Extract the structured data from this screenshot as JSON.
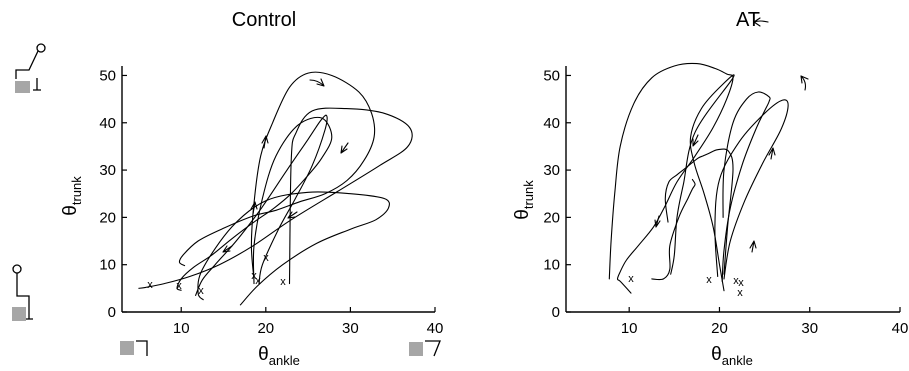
{
  "chart_data": [
    {
      "type": "line",
      "title": "Control",
      "xlabel": "θ",
      "xlabel_sub": "ankle",
      "ylabel": "θ",
      "ylabel_sub": "trunk",
      "xlim": [
        3,
        40
      ],
      "ylim": [
        0,
        52
      ],
      "xticks": [
        10,
        20,
        30,
        40
      ],
      "yticks": [
        0,
        10,
        20,
        30,
        40,
        50
      ],
      "grid": false,
      "series": [
        {
          "x": [
            18.6,
            18.3,
            18.6,
            19.4,
            20.8,
            22.8,
            25.0,
            27.8,
            31.0,
            32.5,
            32.8,
            31.6,
            29.6,
            27.0,
            24.0,
            21.2,
            18.5,
            15.0,
            12.0,
            10.2,
            9.8,
            10.4
          ],
          "y": [
            7.0,
            14.0,
            23.0,
            33.0,
            40.0,
            47.5,
            50.5,
            50.0,
            46.5,
            42.0,
            37.0,
            32.0,
            27.8,
            25.0,
            23.3,
            21.5,
            20.3,
            17.7,
            15.0,
            12.0,
            10.5,
            9.8
          ]
        },
        {
          "x": [
            18.6,
            18.6,
            19.6,
            21.2,
            23.8,
            26.6,
            27.8,
            26.6,
            24.8,
            23.0,
            21.0,
            18.6,
            16.0,
            13.6,
            11.5,
            10.0,
            9.5,
            10.0
          ],
          "y": [
            6.0,
            14.0,
            24.0,
            33.0,
            39.5,
            41.0,
            37.0,
            32.5,
            28.5,
            25.0,
            22.0,
            19.0,
            15.5,
            12.0,
            9.5,
            7.0,
            5.0,
            4.6
          ]
        },
        {
          "x": [
            5.0,
            5.8,
            8.0,
            11.0,
            14.5,
            18.5,
            23.0,
            28.5,
            33.5,
            36.8,
            37.0,
            34.0,
            29.5,
            25.5,
            23.6,
            23.0,
            22.8
          ],
          "y": [
            5.0,
            5.2,
            6.0,
            7.5,
            10.0,
            14.0,
            19.5,
            25.5,
            31.0,
            35.0,
            39.0,
            42.0,
            43.0,
            42.5,
            38.0,
            32.0,
            6.0
          ]
        },
        {
          "x": [
            11.7,
            12.5,
            14.0,
            16.5,
            19.5,
            22.5,
            25.0,
            26.5,
            27.2,
            27.0,
            25.5,
            23.5,
            21.5,
            19.6,
            19.2
          ],
          "y": [
            3.5,
            6.8,
            10.0,
            15.0,
            22.0,
            30.0,
            36.5,
            40.5,
            41.5,
            38.5,
            31.0,
            24.0,
            17.5,
            10.0,
            6.0
          ]
        },
        {
          "x": [
            17.0,
            19.0,
            22.0,
            26.0,
            30.0,
            33.0,
            34.5,
            34.0,
            30.0,
            25.0,
            20.0,
            16.0,
            12.5,
            12.0,
            12.6
          ],
          "y": [
            1.5,
            5.5,
            10.0,
            14.5,
            17.5,
            19.5,
            22.0,
            24.0,
            25.0,
            25.3,
            23.5,
            18.0,
            9.0,
            4.0,
            2.6
          ]
        }
      ]
    },
    {
      "type": "line",
      "title": "AT",
      "xlabel": "θ",
      "xlabel_sub": "ankle",
      "ylabel": "θ",
      "ylabel_sub": "trunk",
      "xlim": [
        3,
        40
      ],
      "ylim": [
        0,
        52
      ],
      "xticks": [
        10,
        20,
        30,
        40
      ],
      "yticks": [
        0,
        10,
        20,
        30,
        40,
        50
      ],
      "grid": false,
      "series": [
        {
          "x": [
            7.8,
            8.0,
            8.4,
            9.0,
            10.5,
            12.5,
            15.0,
            17.5,
            19.5,
            20.8,
            21.5,
            20.8,
            19.3,
            17.3,
            15.3,
            14.0,
            12.7,
            11.0,
            9.7,
            9.0,
            8.7,
            9.0,
            10.2
          ],
          "y": [
            7.0,
            15.0,
            25.0,
            35.0,
            44.0,
            49.5,
            52.0,
            52.5,
            51.5,
            50.3,
            49.5,
            45.0,
            39.0,
            33.0,
            27.5,
            22.5,
            18.0,
            14.0,
            11.0,
            8.5,
            7.0,
            6.5,
            4.0
          ]
        },
        {
          "x": [
            20.5,
            20.0,
            19.3,
            18.3,
            17.2,
            16.8,
            18.0,
            20.3,
            21.5,
            17.3,
            16.0,
            15.3,
            15.0,
            14.6
          ],
          "y": [
            4.5,
            10.0,
            18.0,
            25.0,
            31.5,
            37.0,
            43.0,
            48.0,
            49.5,
            38.0,
            27.0,
            20.0,
            12.0,
            8.0
          ]
        },
        {
          "x": [
            20.3,
            20.5,
            21.2,
            22.5,
            24.0,
            25.0,
            25.5,
            25.5,
            24.3,
            23.0,
            21.5,
            20.5,
            20.4
          ],
          "y": [
            6.5,
            13.0,
            22.0,
            31.0,
            38.5,
            42.5,
            44.5,
            45.5,
            46.5,
            45.0,
            40.0,
            30.0,
            20.0
          ]
        },
        {
          "x": [
            20.5,
            21.2,
            22.8,
            24.8,
            26.8,
            27.6,
            27.0,
            25.0,
            22.2,
            20.0,
            19.5,
            19.8
          ],
          "y": [
            7.0,
            15.0,
            23.5,
            31.5,
            38.5,
            43.5,
            44.8,
            42.0,
            36.0,
            28.0,
            18.0,
            7.5
          ]
        },
        {
          "x": [
            14.3,
            14.0,
            14.4,
            15.3,
            16.3,
            17.6,
            18.2,
            18.8,
            19.8,
            21.0,
            21.5,
            20.9,
            20.5
          ],
          "y": [
            19.0,
            24.0,
            27.5,
            29.0,
            30.5,
            32.5,
            33.0,
            33.5,
            34.3,
            34.0,
            30.0,
            18.0,
            8.0
          ]
        },
        {
          "x": [
            12.5,
            13.8,
            14.5,
            14.5,
            15.5,
            16.5,
            17.0,
            17.3,
            17.0
          ],
          "y": [
            7.0,
            7.0,
            9.0,
            14.0,
            20.0,
            24.0,
            26.0,
            27.0,
            28.0
          ]
        }
      ]
    }
  ]
}
